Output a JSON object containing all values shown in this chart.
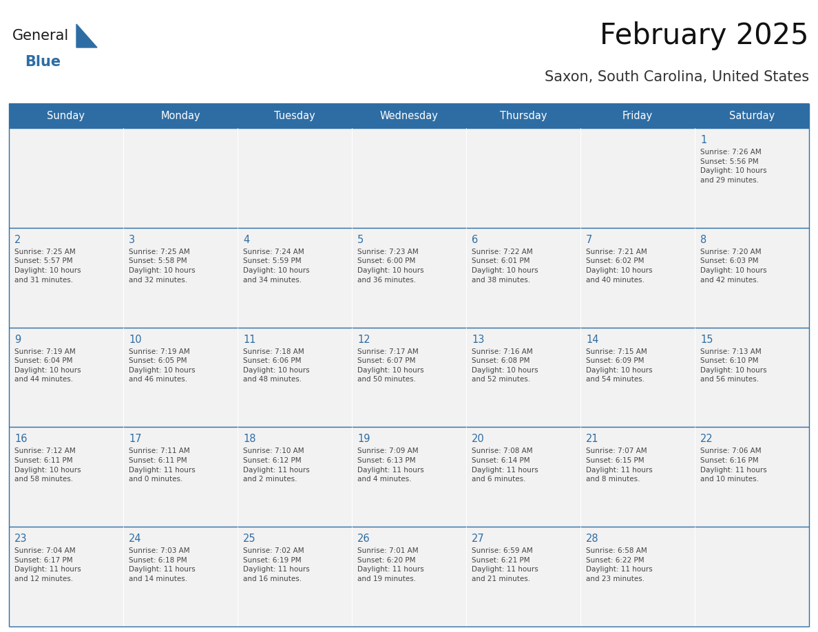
{
  "title": "February 2025",
  "subtitle": "Saxon, South Carolina, United States",
  "header_color": "#2E6DA4",
  "header_text_color": "#FFFFFF",
  "cell_bg_color": "#F2F2F2",
  "cell_line_color": "#2E6DA4",
  "day_number_color": "#2E6DA4",
  "info_text_color": "#444444",
  "days_of_week": [
    "Sunday",
    "Monday",
    "Tuesday",
    "Wednesday",
    "Thursday",
    "Friday",
    "Saturday"
  ],
  "weeks": [
    [
      {
        "day": null,
        "info": null
      },
      {
        "day": null,
        "info": null
      },
      {
        "day": null,
        "info": null
      },
      {
        "day": null,
        "info": null
      },
      {
        "day": null,
        "info": null
      },
      {
        "day": null,
        "info": null
      },
      {
        "day": "1",
        "info": "Sunrise: 7:26 AM\nSunset: 5:56 PM\nDaylight: 10 hours\nand 29 minutes."
      }
    ],
    [
      {
        "day": "2",
        "info": "Sunrise: 7:25 AM\nSunset: 5:57 PM\nDaylight: 10 hours\nand 31 minutes."
      },
      {
        "day": "3",
        "info": "Sunrise: 7:25 AM\nSunset: 5:58 PM\nDaylight: 10 hours\nand 32 minutes."
      },
      {
        "day": "4",
        "info": "Sunrise: 7:24 AM\nSunset: 5:59 PM\nDaylight: 10 hours\nand 34 minutes."
      },
      {
        "day": "5",
        "info": "Sunrise: 7:23 AM\nSunset: 6:00 PM\nDaylight: 10 hours\nand 36 minutes."
      },
      {
        "day": "6",
        "info": "Sunrise: 7:22 AM\nSunset: 6:01 PM\nDaylight: 10 hours\nand 38 minutes."
      },
      {
        "day": "7",
        "info": "Sunrise: 7:21 AM\nSunset: 6:02 PM\nDaylight: 10 hours\nand 40 minutes."
      },
      {
        "day": "8",
        "info": "Sunrise: 7:20 AM\nSunset: 6:03 PM\nDaylight: 10 hours\nand 42 minutes."
      }
    ],
    [
      {
        "day": "9",
        "info": "Sunrise: 7:19 AM\nSunset: 6:04 PM\nDaylight: 10 hours\nand 44 minutes."
      },
      {
        "day": "10",
        "info": "Sunrise: 7:19 AM\nSunset: 6:05 PM\nDaylight: 10 hours\nand 46 minutes."
      },
      {
        "day": "11",
        "info": "Sunrise: 7:18 AM\nSunset: 6:06 PM\nDaylight: 10 hours\nand 48 minutes."
      },
      {
        "day": "12",
        "info": "Sunrise: 7:17 AM\nSunset: 6:07 PM\nDaylight: 10 hours\nand 50 minutes."
      },
      {
        "day": "13",
        "info": "Sunrise: 7:16 AM\nSunset: 6:08 PM\nDaylight: 10 hours\nand 52 minutes."
      },
      {
        "day": "14",
        "info": "Sunrise: 7:15 AM\nSunset: 6:09 PM\nDaylight: 10 hours\nand 54 minutes."
      },
      {
        "day": "15",
        "info": "Sunrise: 7:13 AM\nSunset: 6:10 PM\nDaylight: 10 hours\nand 56 minutes."
      }
    ],
    [
      {
        "day": "16",
        "info": "Sunrise: 7:12 AM\nSunset: 6:11 PM\nDaylight: 10 hours\nand 58 minutes."
      },
      {
        "day": "17",
        "info": "Sunrise: 7:11 AM\nSunset: 6:11 PM\nDaylight: 11 hours\nand 0 minutes."
      },
      {
        "day": "18",
        "info": "Sunrise: 7:10 AM\nSunset: 6:12 PM\nDaylight: 11 hours\nand 2 minutes."
      },
      {
        "day": "19",
        "info": "Sunrise: 7:09 AM\nSunset: 6:13 PM\nDaylight: 11 hours\nand 4 minutes."
      },
      {
        "day": "20",
        "info": "Sunrise: 7:08 AM\nSunset: 6:14 PM\nDaylight: 11 hours\nand 6 minutes."
      },
      {
        "day": "21",
        "info": "Sunrise: 7:07 AM\nSunset: 6:15 PM\nDaylight: 11 hours\nand 8 minutes."
      },
      {
        "day": "22",
        "info": "Sunrise: 7:06 AM\nSunset: 6:16 PM\nDaylight: 11 hours\nand 10 minutes."
      }
    ],
    [
      {
        "day": "23",
        "info": "Sunrise: 7:04 AM\nSunset: 6:17 PM\nDaylight: 11 hours\nand 12 minutes."
      },
      {
        "day": "24",
        "info": "Sunrise: 7:03 AM\nSunset: 6:18 PM\nDaylight: 11 hours\nand 14 minutes."
      },
      {
        "day": "25",
        "info": "Sunrise: 7:02 AM\nSunset: 6:19 PM\nDaylight: 11 hours\nand 16 minutes."
      },
      {
        "day": "26",
        "info": "Sunrise: 7:01 AM\nSunset: 6:20 PM\nDaylight: 11 hours\nand 19 minutes."
      },
      {
        "day": "27",
        "info": "Sunrise: 6:59 AM\nSunset: 6:21 PM\nDaylight: 11 hours\nand 21 minutes."
      },
      {
        "day": "28",
        "info": "Sunrise: 6:58 AM\nSunset: 6:22 PM\nDaylight: 11 hours\nand 23 minutes."
      },
      {
        "day": null,
        "info": null
      }
    ]
  ],
  "logo_text_general": "General",
  "logo_text_blue": "Blue",
  "logo_color_general": "#1a1a1a",
  "logo_color_blue": "#2E6DA4",
  "fig_width": 11.88,
  "fig_height": 9.18,
  "dpi": 100
}
